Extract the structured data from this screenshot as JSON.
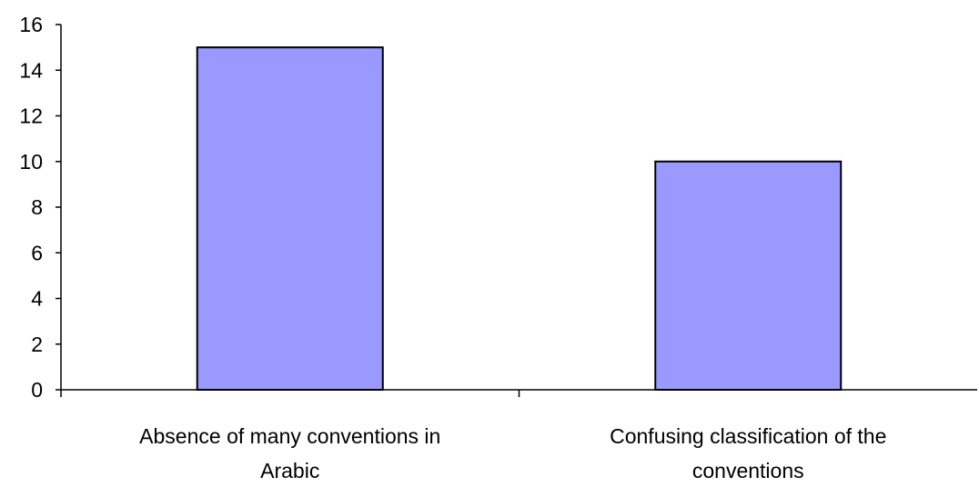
{
  "chart_data": {
    "type": "bar",
    "title": "",
    "xlabel": "",
    "ylabel": "",
    "categories": [
      [
        "Absence of many conventions in",
        "Arabic"
      ],
      [
        "Confusing classification of the",
        "conventions"
      ]
    ],
    "values": [
      15,
      10
    ],
    "ylim": [
      0,
      16
    ],
    "yticks": [
      "0",
      "2",
      "4",
      "6",
      "8",
      "10",
      "12",
      "14",
      "16"
    ],
    "grid": false,
    "legend": "none",
    "colors": {
      "bar_fill": "#9999ff",
      "bar_stroke": "#000000",
      "axis": "#000000",
      "background": "#ffffff"
    }
  }
}
